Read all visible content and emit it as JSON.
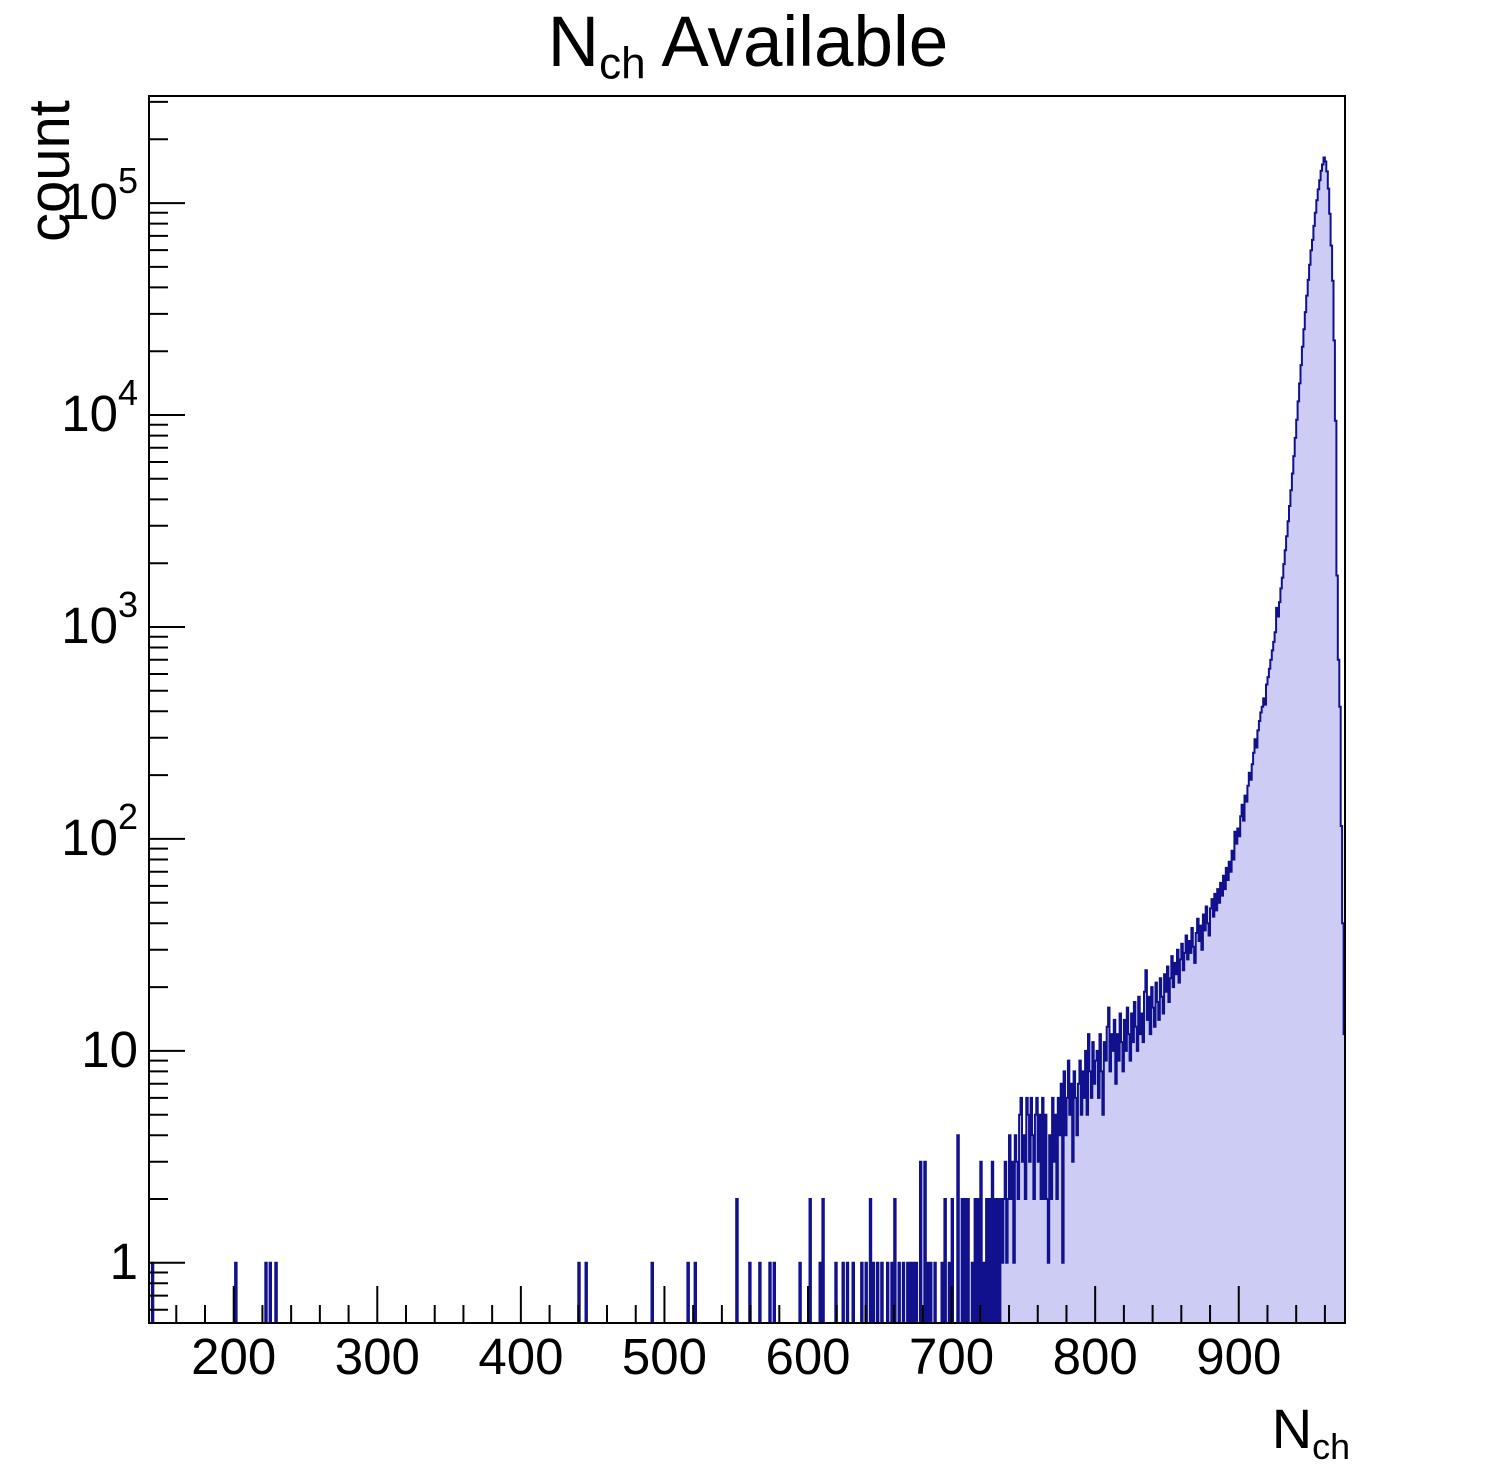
{
  "title": {
    "base": "N",
    "subscript": "ch",
    "rest": " Available"
  },
  "axes": {
    "x": {
      "label_base": "N",
      "label_subscript": "ch",
      "min": 141,
      "max": 974,
      "minor_step": 20,
      "major_ticks": [
        {
          "value": 200,
          "label": "200"
        },
        {
          "value": 300,
          "label": "300"
        },
        {
          "value": 400,
          "label": "400"
        },
        {
          "value": 500,
          "label": "500"
        },
        {
          "value": 600,
          "label": "600"
        },
        {
          "value": 700,
          "label": "700"
        },
        {
          "value": 800,
          "label": "800"
        },
        {
          "value": 900,
          "label": "900"
        }
      ]
    },
    "y": {
      "label": "count",
      "scale": "log",
      "min": 0.52,
      "max": 320000,
      "tick_labels": [
        {
          "value": 1,
          "base": "1",
          "exp": ""
        },
        {
          "value": 10,
          "base": "10",
          "exp": ""
        },
        {
          "value": 100,
          "base": "10",
          "exp": "2"
        },
        {
          "value": 1000,
          "base": "10",
          "exp": "3"
        },
        {
          "value": 10000,
          "base": "10",
          "exp": "4"
        },
        {
          "value": 100000,
          "base": "10",
          "exp": "5"
        }
      ]
    }
  },
  "colors": {
    "hist_line": "#11118d",
    "hist_fill": "#ccccf5",
    "axis": "#000000",
    "background": "#ffffff",
    "text": "#000000"
  },
  "chart_data": {
    "type": "bar",
    "title": "N_ch Available",
    "xlabel": "N_ch",
    "ylabel": "count",
    "yscale": "log",
    "xlim": [
      141,
      974
    ],
    "ylim": [
      0.52,
      320000
    ],
    "bin_width": 1,
    "legend": "none",
    "grid": false,
    "peak": {
      "x": 959,
      "count": 164000
    },
    "bins": [
      [
        143,
        1
      ],
      [
        201,
        1
      ],
      [
        222,
        1
      ],
      [
        225,
        1
      ],
      [
        229,
        1
      ],
      [
        440,
        1
      ],
      [
        445,
        1
      ],
      [
        491,
        1
      ],
      [
        516,
        1
      ],
      [
        521,
        1
      ],
      [
        550,
        2
      ],
      [
        559,
        1
      ],
      [
        566,
        1
      ],
      [
        573,
        1
      ],
      [
        576,
        1
      ],
      [
        594,
        1
      ],
      [
        601,
        2
      ],
      [
        608,
        1
      ],
      [
        610,
        2
      ],
      [
        619,
        1
      ],
      [
        624,
        1
      ],
      [
        627,
        1
      ],
      [
        631,
        1
      ],
      [
        637,
        1
      ],
      [
        640,
        1
      ],
      [
        643,
        2
      ],
      [
        645,
        1
      ],
      [
        648,
        1
      ],
      [
        651,
        1
      ],
      [
        655,
        1
      ],
      [
        658,
        1
      ],
      [
        660,
        2
      ],
      [
        663,
        1
      ],
      [
        666,
        1
      ],
      [
        669,
        1
      ],
      [
        671,
        1
      ],
      [
        673,
        1
      ],
      [
        675,
        1
      ],
      [
        678,
        3
      ],
      [
        681,
        3
      ],
      [
        683,
        1
      ],
      [
        685,
        1
      ],
      [
        688,
        1
      ],
      [
        693,
        1
      ],
      [
        695,
        2
      ],
      [
        698,
        1
      ],
      [
        700,
        2
      ],
      [
        704,
        4
      ],
      [
        707,
        2
      ],
      [
        709,
        2
      ],
      [
        711,
        2
      ],
      [
        714,
        1
      ],
      [
        716,
        2
      ],
      [
        718,
        2
      ],
      [
        720,
        3
      ],
      [
        722,
        1
      ],
      [
        724,
        2
      ],
      [
        726,
        2
      ],
      [
        728,
        3
      ],
      [
        730,
        2
      ],
      [
        732,
        2
      ],
      [
        734,
        2
      ],
      [
        735,
        1
      ],
      [
        736,
        2
      ],
      [
        737,
        3
      ],
      [
        738,
        1
      ],
      [
        739,
        2
      ],
      [
        740,
        4
      ],
      [
        741,
        2
      ],
      [
        742,
        3
      ],
      [
        743,
        1
      ],
      [
        744,
        4
      ],
      [
        745,
        3
      ],
      [
        746,
        2
      ],
      [
        747,
        5
      ],
      [
        748,
        6
      ],
      [
        749,
        3
      ],
      [
        750,
        4
      ],
      [
        751,
        2
      ],
      [
        752,
        6
      ],
      [
        753,
        5
      ],
      [
        754,
        3
      ],
      [
        755,
        6
      ],
      [
        756,
        4
      ],
      [
        757,
        2
      ],
      [
        758,
        5
      ],
      [
        759,
        6
      ],
      [
        760,
        3
      ],
      [
        761,
        5
      ],
      [
        762,
        2
      ],
      [
        763,
        6
      ],
      [
        764,
        2
      ],
      [
        765,
        5
      ],
      [
        766,
        2
      ],
      [
        767,
        1
      ],
      [
        768,
        4
      ],
      [
        769,
        2
      ],
      [
        770,
        6
      ],
      [
        771,
        3
      ],
      [
        772,
        5
      ],
      [
        773,
        2
      ],
      [
        774,
        6
      ],
      [
        775,
        4
      ],
      [
        776,
        7
      ],
      [
        777,
        1
      ],
      [
        778,
        8
      ],
      [
        779,
        4
      ],
      [
        780,
        6
      ],
      [
        781,
        9
      ],
      [
        782,
        5
      ],
      [
        783,
        7
      ],
      [
        784,
        3
      ],
      [
        785,
        8
      ],
      [
        786,
        6
      ],
      [
        787,
        4
      ],
      [
        788,
        7
      ],
      [
        789,
        9
      ],
      [
        790,
        5
      ],
      [
        791,
        8
      ],
      [
        792,
        6
      ],
      [
        793,
        10
      ],
      [
        794,
        5
      ],
      [
        795,
        12
      ],
      [
        796,
        8
      ],
      [
        797,
        6
      ],
      [
        798,
        11
      ],
      [
        799,
        7
      ],
      [
        800,
        9
      ],
      [
        801,
        10
      ],
      [
        802,
        6
      ],
      [
        803,
        12
      ],
      [
        804,
        8
      ],
      [
        805,
        5
      ],
      [
        806,
        11
      ],
      [
        807,
        9
      ],
      [
        808,
        13
      ],
      [
        809,
        16
      ],
      [
        810,
        8
      ],
      [
        811,
        12
      ],
      [
        812,
        10
      ],
      [
        813,
        14
      ],
      [
        814,
        7
      ],
      [
        815,
        12
      ],
      [
        816,
        9
      ],
      [
        817,
        15
      ],
      [
        818,
        11
      ],
      [
        819,
        8
      ],
      [
        820,
        14
      ],
      [
        821,
        10
      ],
      [
        822,
        16
      ],
      [
        823,
        12
      ],
      [
        824,
        9
      ],
      [
        825,
        15
      ],
      [
        826,
        11
      ],
      [
        827,
        17
      ],
      [
        828,
        13
      ],
      [
        829,
        10
      ],
      [
        830,
        18
      ],
      [
        831,
        12
      ],
      [
        832,
        15
      ],
      [
        833,
        11
      ],
      [
        834,
        19
      ],
      [
        835,
        24
      ],
      [
        836,
        14
      ],
      [
        837,
        18
      ],
      [
        838,
        12
      ],
      [
        839,
        20
      ],
      [
        840,
        16
      ],
      [
        841,
        13
      ],
      [
        842,
        21
      ],
      [
        843,
        17
      ],
      [
        844,
        14
      ],
      [
        845,
        22
      ],
      [
        846,
        18
      ],
      [
        847,
        15
      ],
      [
        848,
        23
      ],
      [
        849,
        19
      ],
      [
        850,
        25
      ],
      [
        851,
        17
      ],
      [
        852,
        22
      ],
      [
        853,
        28
      ],
      [
        854,
        20
      ],
      [
        855,
        26
      ],
      [
        856,
        23
      ],
      [
        857,
        30
      ],
      [
        858,
        21
      ],
      [
        859,
        27
      ],
      [
        860,
        32
      ],
      [
        861,
        24
      ],
      [
        862,
        29
      ],
      [
        863,
        35
      ],
      [
        864,
        27
      ],
      [
        865,
        33
      ],
      [
        866,
        29
      ],
      [
        867,
        38
      ],
      [
        868,
        31
      ],
      [
        869,
        26
      ],
      [
        870,
        36
      ],
      [
        871,
        42
      ],
      [
        872,
        33
      ],
      [
        873,
        39
      ],
      [
        874,
        30
      ],
      [
        875,
        44
      ],
      [
        876,
        37
      ],
      [
        877,
        48
      ],
      [
        878,
        40
      ],
      [
        879,
        35
      ],
      [
        880,
        47
      ],
      [
        881,
        52
      ],
      [
        882,
        43
      ],
      [
        883,
        55
      ],
      [
        884,
        46
      ],
      [
        885,
        58
      ],
      [
        886,
        50
      ],
      [
        887,
        62
      ],
      [
        888,
        54
      ],
      [
        889,
        67
      ],
      [
        890,
        58
      ],
      [
        891,
        73
      ],
      [
        892,
        64
      ],
      [
        893,
        78
      ],
      [
        894,
        70
      ],
      [
        895,
        88
      ],
      [
        896,
        80
      ],
      [
        897,
        108
      ],
      [
        898,
        95
      ],
      [
        899,
        112
      ],
      [
        900,
        103
      ],
      [
        901,
        128
      ],
      [
        902,
        145
      ],
      [
        903,
        122
      ],
      [
        904,
        160
      ],
      [
        905,
        150
      ],
      [
        906,
        178
      ],
      [
        907,
        205
      ],
      [
        908,
        190
      ],
      [
        909,
        225
      ],
      [
        910,
        255
      ],
      [
        911,
        295
      ],
      [
        912,
        270
      ],
      [
        913,
        325
      ],
      [
        914,
        360
      ],
      [
        915,
        395
      ],
      [
        916,
        420
      ],
      [
        917,
        460
      ],
      [
        918,
        430
      ],
      [
        919,
        535
      ],
      [
        920,
        580
      ],
      [
        921,
        635
      ],
      [
        922,
        700
      ],
      [
        923,
        775
      ],
      [
        924,
        850
      ],
      [
        925,
        945
      ],
      [
        926,
        1230
      ],
      [
        927,
        1120
      ],
      [
        928,
        1310
      ],
      [
        929,
        1520
      ],
      [
        930,
        1710
      ],
      [
        931,
        1980
      ],
      [
        932,
        2300
      ],
      [
        933,
        2680
      ],
      [
        934,
        3150
      ],
      [
        935,
        3720
      ],
      [
        936,
        4420
      ],
      [
        937,
        5300
      ],
      [
        938,
        6400
      ],
      [
        939,
        7800
      ],
      [
        940,
        9500
      ],
      [
        941,
        11600
      ],
      [
        942,
        14100
      ],
      [
        943,
        17200
      ],
      [
        944,
        21000
      ],
      [
        945,
        25400
      ],
      [
        946,
        30600
      ],
      [
        947,
        36600
      ],
      [
        948,
        43400
      ],
      [
        949,
        51200
      ],
      [
        950,
        59800
      ],
      [
        951,
        67000
      ],
      [
        952,
        78000
      ],
      [
        953,
        90000
      ],
      [
        954,
        103000
      ],
      [
        955,
        116000
      ],
      [
        956,
        128000
      ],
      [
        957,
        142000
      ],
      [
        958,
        152000
      ],
      [
        959,
        164000
      ],
      [
        960,
        157000
      ],
      [
        961,
        141000
      ],
      [
        962,
        117000
      ],
      [
        963,
        89000
      ],
      [
        964,
        63000
      ],
      [
        965,
        43000
      ],
      [
        966,
        22500
      ],
      [
        967,
        9400
      ],
      [
        968,
        1750
      ],
      [
        969,
        700
      ],
      [
        970,
        420
      ],
      [
        971,
        115
      ],
      [
        972,
        40
      ],
      [
        973,
        12
      ]
    ]
  }
}
